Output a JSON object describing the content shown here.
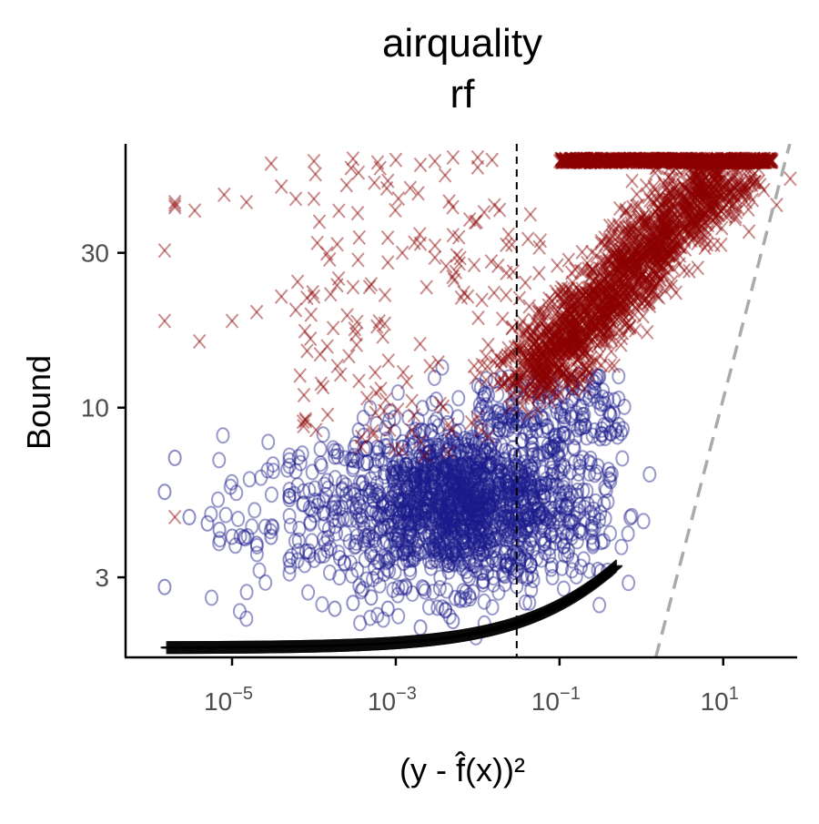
{
  "chart_data": {
    "type": "scatter",
    "title": "airquality",
    "subtitle": "rf",
    "xlabel": "(y - f̂(x))²",
    "ylabel": "Bound",
    "x_scale": "log10",
    "y_scale": "log10",
    "xlim": [
      5e-07,
      80
    ],
    "ylim": [
      1.7,
      65
    ],
    "x_ticks": [
      1e-05,
      0.001,
      0.1,
      10
    ],
    "x_tick_labels": [
      {
        "base": "10",
        "exp": "−5"
      },
      {
        "base": "10",
        "exp": "−3"
      },
      {
        "base": "10",
        "exp": "−1"
      },
      {
        "base": "10",
        "exp": "1"
      }
    ],
    "y_ticks": [
      3,
      10,
      30
    ],
    "y_tick_labels": [
      "3",
      "10",
      "30"
    ],
    "reference_lines": [
      {
        "kind": "vertical",
        "x": 0.03,
        "style": "dashed",
        "color": "#000000"
      },
      {
        "kind": "identity",
        "from": [
          1.5,
          1.7
        ],
        "to": [
          65,
          65
        ],
        "style": "dashed",
        "color": "#aaaaaa"
      }
    ],
    "series": [
      {
        "marker": "x",
        "color": "#8b0000",
        "points": [
          [
            2e-06,
            4.6
          ],
          [
            1.5e-06,
            30.5
          ],
          [
            2e-06,
            41.5
          ],
          [
            2e-06,
            43
          ],
          [
            2e-06,
            42.2
          ],
          [
            3.5e-06,
            40.5
          ],
          [
            8e-06,
            45.3
          ],
          [
            1.5e-05,
            43
          ],
          [
            4e-05,
            48
          ],
          [
            6e-05,
            44
          ],
          [
            0.0001,
            44
          ],
          [
            0.00025,
            48.5
          ],
          [
            0.00035,
            53
          ],
          [
            0.0008,
            50
          ],
          [
            0.0015,
            47.5
          ],
          [
            0.004,
            52
          ],
          [
            0.01,
            55
          ],
          [
            1.5e-06,
            18.5
          ],
          [
            4e-06,
            16
          ],
          [
            1e-05,
            18.5
          ],
          [
            2e-05,
            19.7
          ],
          [
            4e-05,
            22
          ],
          [
            6e-05,
            20
          ],
          [
            0.0001,
            22
          ],
          [
            0.0002,
            25
          ],
          [
            0.0003,
            23.5
          ],
          [
            0.0005,
            24
          ],
          [
            0.0008,
            28
          ],
          [
            0.0012,
            30
          ],
          [
            0.002,
            32
          ],
          [
            0.003,
            29
          ],
          [
            0.005,
            34
          ],
          [
            0.008,
            38
          ],
          [
            0.012,
            40
          ],
          [
            0.016,
            42
          ],
          [
            3e-05,
            56.5
          ],
          [
            0.0001,
            57.5
          ],
          [
            0.0003,
            58.5
          ],
          [
            0.0006,
            57
          ],
          [
            0.001,
            58
          ],
          [
            0.002,
            56
          ],
          [
            0.003,
            57.5
          ],
          [
            0.005,
            59
          ],
          [
            0.01,
            59
          ],
          [
            0.015,
            58
          ]
        ],
        "band": {
          "x_start": 0.05,
          "x_end": 45,
          "y_floor": 11,
          "y_ceiling": 59,
          "note": "dense cloud near upper right"
        }
      },
      {
        "marker": "o",
        "color": "#1a1a8c",
        "points": [
          [
            1.5e-06,
            2.8
          ],
          [
            1.5e-06,
            5.5
          ],
          [
            2e-06,
            7
          ],
          [
            3e-06,
            4.6
          ],
          [
            5e-06,
            4.4
          ],
          [
            7e-06,
            4.2
          ],
          [
            1e-05,
            4
          ],
          [
            2e-05,
            3.8
          ],
          [
            3e-05,
            4
          ],
          [
            5e-05,
            3.4
          ],
          [
            8e-05,
            3.6
          ],
          [
            0.00012,
            3.5
          ],
          [
            0.00018,
            2.4
          ],
          [
            0.0003,
            2.5
          ],
          [
            0.0005,
            2.6
          ],
          [
            0.0008,
            2.4
          ],
          [
            0.002,
            2.1
          ],
          [
            0.005,
            2.2
          ]
        ],
        "band": {
          "x_start": 0.0001,
          "x_end": 3,
          "y_floor": 2.2,
          "y_ceiling": 13,
          "note": "dense cloud lower middle"
        }
      },
      {
        "marker": "+",
        "color": "#000000",
        "curve": "1.8 + 8*x^0.5 approx from 1e-6 to 0.5"
      }
    ]
  }
}
